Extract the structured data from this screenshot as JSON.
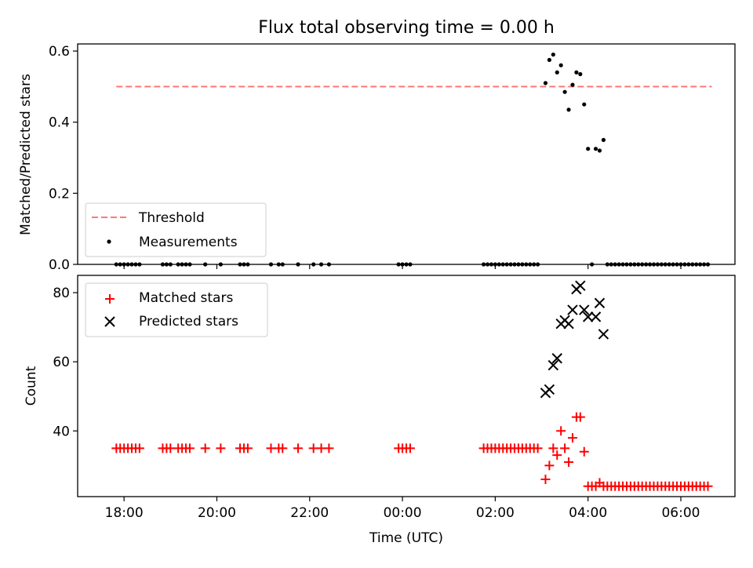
{
  "title": "Flux total observing time = 0.00 h",
  "x_ticks": [
    "18:00",
    "20:00",
    "22:00",
    "00:00",
    "02:00",
    "04:00",
    "06:00"
  ],
  "colors": {
    "threshold": "#ff7777",
    "measurements": "#000000",
    "matched": "#ff0000",
    "predicted": "#000000"
  },
  "chart_data": [
    {
      "type": "scatter",
      "panel": "top",
      "xlabel": "",
      "ylabel": "Matched/Predicted stars",
      "xlim": [
        "2023-01-01T17:00",
        "2023-01-02T07:10"
      ],
      "ylim": [
        0,
        0.62
      ],
      "yticks": [
        "0.0",
        "0.2",
        "0.4",
        "0.6"
      ],
      "threshold": {
        "name": "Threshold",
        "value": 0.5,
        "x_start": "2023-01-01T17:50",
        "x_end": "2023-01-02T06:40"
      },
      "legend": {
        "position": "lower-left",
        "entries": [
          "Threshold",
          "Measurements"
        ]
      },
      "series": [
        {
          "name": "Measurements",
          "points": [
            [
              "2023-01-01T17:50",
              0
            ],
            [
              "2023-01-01T17:55",
              0
            ],
            [
              "2023-01-01T18:00",
              0
            ],
            [
              "2023-01-01T18:05",
              0
            ],
            [
              "2023-01-01T18:10",
              0
            ],
            [
              "2023-01-01T18:15",
              0
            ],
            [
              "2023-01-01T18:20",
              0
            ],
            [
              "2023-01-01T18:50",
              0
            ],
            [
              "2023-01-01T18:55",
              0
            ],
            [
              "2023-01-01T19:00",
              0
            ],
            [
              "2023-01-01T19:10",
              0
            ],
            [
              "2023-01-01T19:15",
              0
            ],
            [
              "2023-01-01T19:20",
              0
            ],
            [
              "2023-01-01T19:25",
              0
            ],
            [
              "2023-01-01T19:45",
              0
            ],
            [
              "2023-01-01T20:05",
              0
            ],
            [
              "2023-01-01T20:30",
              0
            ],
            [
              "2023-01-01T20:35",
              0
            ],
            [
              "2023-01-01T20:40",
              0
            ],
            [
              "2023-01-01T21:10",
              0
            ],
            [
              "2023-01-01T21:20",
              0
            ],
            [
              "2023-01-01T21:25",
              0
            ],
            [
              "2023-01-01T21:45",
              0
            ],
            [
              "2023-01-01T22:05",
              0
            ],
            [
              "2023-01-01T22:15",
              0
            ],
            [
              "2023-01-01T22:25",
              0
            ],
            [
              "2023-01-01T23:55",
              0
            ],
            [
              "2023-01-02T00:00",
              0
            ],
            [
              "2023-01-02T00:05",
              0
            ],
            [
              "2023-01-02T00:10",
              0
            ],
            [
              "2023-01-02T01:45",
              0
            ],
            [
              "2023-01-02T01:50",
              0
            ],
            [
              "2023-01-02T01:55",
              0
            ],
            [
              "2023-01-02T02:00",
              0
            ],
            [
              "2023-01-02T02:05",
              0
            ],
            [
              "2023-01-02T02:10",
              0
            ],
            [
              "2023-01-02T02:15",
              0
            ],
            [
              "2023-01-02T02:20",
              0
            ],
            [
              "2023-01-02T02:25",
              0
            ],
            [
              "2023-01-02T02:30",
              0
            ],
            [
              "2023-01-02T02:35",
              0
            ],
            [
              "2023-01-02T02:40",
              0
            ],
            [
              "2023-01-02T02:45",
              0
            ],
            [
              "2023-01-02T02:50",
              0
            ],
            [
              "2023-01-02T02:55",
              0
            ],
            [
              "2023-01-02T03:05",
              0.51
            ],
            [
              "2023-01-02T03:10",
              0.575
            ],
            [
              "2023-01-02T03:15",
              0.59
            ],
            [
              "2023-01-02T03:20",
              0.54
            ],
            [
              "2023-01-02T03:25",
              0.56
            ],
            [
              "2023-01-02T03:30",
              0.485
            ],
            [
              "2023-01-02T03:35",
              0.435
            ],
            [
              "2023-01-02T03:40",
              0.505
            ],
            [
              "2023-01-02T03:45",
              0.54
            ],
            [
              "2023-01-02T03:50",
              0.535
            ],
            [
              "2023-01-02T03:55",
              0.45
            ],
            [
              "2023-01-02T04:00",
              0.325
            ],
            [
              "2023-01-02T04:05",
              0
            ],
            [
              "2023-01-02T04:10",
              0.325
            ],
            [
              "2023-01-02T04:15",
              0.32
            ],
            [
              "2023-01-02T04:20",
              0.35
            ],
            [
              "2023-01-02T04:25",
              0
            ],
            [
              "2023-01-02T04:30",
              0
            ],
            [
              "2023-01-02T04:35",
              0
            ],
            [
              "2023-01-02T04:40",
              0
            ],
            [
              "2023-01-02T04:45",
              0
            ],
            [
              "2023-01-02T04:50",
              0
            ],
            [
              "2023-01-02T04:55",
              0
            ],
            [
              "2023-01-02T05:00",
              0
            ],
            [
              "2023-01-02T05:05",
              0
            ],
            [
              "2023-01-02T05:10",
              0
            ],
            [
              "2023-01-02T05:15",
              0
            ],
            [
              "2023-01-02T05:20",
              0
            ],
            [
              "2023-01-02T05:25",
              0
            ],
            [
              "2023-01-02T05:30",
              0
            ],
            [
              "2023-01-02T05:35",
              0
            ],
            [
              "2023-01-02T05:40",
              0
            ],
            [
              "2023-01-02T05:45",
              0
            ],
            [
              "2023-01-02T05:50",
              0
            ],
            [
              "2023-01-02T05:55",
              0
            ],
            [
              "2023-01-02T06:00",
              0
            ],
            [
              "2023-01-02T06:05",
              0
            ],
            [
              "2023-01-02T06:10",
              0
            ],
            [
              "2023-01-02T06:15",
              0
            ],
            [
              "2023-01-02T06:20",
              0
            ],
            [
              "2023-01-02T06:25",
              0
            ],
            [
              "2023-01-02T06:30",
              0
            ],
            [
              "2023-01-02T06:35",
              0
            ]
          ]
        }
      ]
    },
    {
      "type": "scatter",
      "panel": "bottom",
      "xlabel": "Time (UTC)",
      "ylabel": "Count",
      "xlim": [
        "2023-01-01T17:00",
        "2023-01-02T07:10"
      ],
      "ylim": [
        21,
        85
      ],
      "yticks": [
        "40",
        "60",
        "80"
      ],
      "legend": {
        "position": "upper-left",
        "entries": [
          "Matched stars",
          "Predicted stars"
        ]
      },
      "series": [
        {
          "name": "Matched stars",
          "points": [
            [
              "2023-01-01T17:50",
              35
            ],
            [
              "2023-01-01T17:55",
              35
            ],
            [
              "2023-01-01T18:00",
              35
            ],
            [
              "2023-01-01T18:05",
              35
            ],
            [
              "2023-01-01T18:10",
              35
            ],
            [
              "2023-01-01T18:15",
              35
            ],
            [
              "2023-01-01T18:20",
              35
            ],
            [
              "2023-01-01T18:50",
              35
            ],
            [
              "2023-01-01T18:55",
              35
            ],
            [
              "2023-01-01T19:00",
              35
            ],
            [
              "2023-01-01T19:10",
              35
            ],
            [
              "2023-01-01T19:15",
              35
            ],
            [
              "2023-01-01T19:20",
              35
            ],
            [
              "2023-01-01T19:25",
              35
            ],
            [
              "2023-01-01T19:45",
              35
            ],
            [
              "2023-01-01T20:05",
              35
            ],
            [
              "2023-01-01T20:30",
              35
            ],
            [
              "2023-01-01T20:35",
              35
            ],
            [
              "2023-01-01T20:40",
              35
            ],
            [
              "2023-01-01T21:10",
              35
            ],
            [
              "2023-01-01T21:20",
              35
            ],
            [
              "2023-01-01T21:25",
              35
            ],
            [
              "2023-01-01T21:45",
              35
            ],
            [
              "2023-01-01T22:05",
              35
            ],
            [
              "2023-01-01T22:15",
              35
            ],
            [
              "2023-01-01T22:25",
              35
            ],
            [
              "2023-01-01T23:55",
              35
            ],
            [
              "2023-01-02T00:00",
              35
            ],
            [
              "2023-01-02T00:05",
              35
            ],
            [
              "2023-01-02T00:10",
              35
            ],
            [
              "2023-01-02T01:45",
              35
            ],
            [
              "2023-01-02T01:50",
              35
            ],
            [
              "2023-01-02T01:55",
              35
            ],
            [
              "2023-01-02T02:00",
              35
            ],
            [
              "2023-01-02T02:05",
              35
            ],
            [
              "2023-01-02T02:10",
              35
            ],
            [
              "2023-01-02T02:15",
              35
            ],
            [
              "2023-01-02T02:20",
              35
            ],
            [
              "2023-01-02T02:25",
              35
            ],
            [
              "2023-01-02T02:30",
              35
            ],
            [
              "2023-01-02T02:35",
              35
            ],
            [
              "2023-01-02T02:40",
              35
            ],
            [
              "2023-01-02T02:45",
              35
            ],
            [
              "2023-01-02T02:50",
              35
            ],
            [
              "2023-01-02T02:55",
              35
            ],
            [
              "2023-01-02T03:05",
              26
            ],
            [
              "2023-01-02T03:10",
              30
            ],
            [
              "2023-01-02T03:15",
              35
            ],
            [
              "2023-01-02T03:20",
              33
            ],
            [
              "2023-01-02T03:25",
              40
            ],
            [
              "2023-01-02T03:30",
              35
            ],
            [
              "2023-01-02T03:35",
              31
            ],
            [
              "2023-01-02T03:40",
              38
            ],
            [
              "2023-01-02T03:45",
              44
            ],
            [
              "2023-01-02T03:50",
              44
            ],
            [
              "2023-01-02T03:55",
              34
            ],
            [
              "2023-01-02T04:00",
              24
            ],
            [
              "2023-01-02T04:05",
              24
            ],
            [
              "2023-01-02T04:10",
              24
            ],
            [
              "2023-01-02T04:15",
              25
            ],
            [
              "2023-01-02T04:20",
              24
            ],
            [
              "2023-01-02T04:25",
              24
            ],
            [
              "2023-01-02T04:30",
              24
            ],
            [
              "2023-01-02T04:35",
              24
            ],
            [
              "2023-01-02T04:40",
              24
            ],
            [
              "2023-01-02T04:45",
              24
            ],
            [
              "2023-01-02T04:50",
              24
            ],
            [
              "2023-01-02T04:55",
              24
            ],
            [
              "2023-01-02T05:00",
              24
            ],
            [
              "2023-01-02T05:05",
              24
            ],
            [
              "2023-01-02T05:10",
              24
            ],
            [
              "2023-01-02T05:15",
              24
            ],
            [
              "2023-01-02T05:20",
              24
            ],
            [
              "2023-01-02T05:25",
              24
            ],
            [
              "2023-01-02T05:30",
              24
            ],
            [
              "2023-01-02T05:35",
              24
            ],
            [
              "2023-01-02T05:40",
              24
            ],
            [
              "2023-01-02T05:45",
              24
            ],
            [
              "2023-01-02T05:50",
              24
            ],
            [
              "2023-01-02T05:55",
              24
            ],
            [
              "2023-01-02T06:00",
              24
            ],
            [
              "2023-01-02T06:05",
              24
            ],
            [
              "2023-01-02T06:10",
              24
            ],
            [
              "2023-01-02T06:15",
              24
            ],
            [
              "2023-01-02T06:20",
              24
            ],
            [
              "2023-01-02T06:25",
              24
            ],
            [
              "2023-01-02T06:30",
              24
            ],
            [
              "2023-01-02T06:35",
              24
            ]
          ]
        },
        {
          "name": "Predicted stars",
          "points": [
            [
              "2023-01-02T03:05",
              51
            ],
            [
              "2023-01-02T03:10",
              52
            ],
            [
              "2023-01-02T03:15",
              59
            ],
            [
              "2023-01-02T03:20",
              61
            ],
            [
              "2023-01-02T03:25",
              71
            ],
            [
              "2023-01-02T03:30",
              72
            ],
            [
              "2023-01-02T03:35",
              71
            ],
            [
              "2023-01-02T03:40",
              75
            ],
            [
              "2023-01-02T03:45",
              81
            ],
            [
              "2023-01-02T03:50",
              82
            ],
            [
              "2023-01-02T03:55",
              75
            ],
            [
              "2023-01-02T04:00",
              73
            ],
            [
              "2023-01-02T04:10",
              73
            ],
            [
              "2023-01-02T04:15",
              77
            ],
            [
              "2023-01-02T04:20",
              68
            ]
          ]
        }
      ]
    }
  ]
}
